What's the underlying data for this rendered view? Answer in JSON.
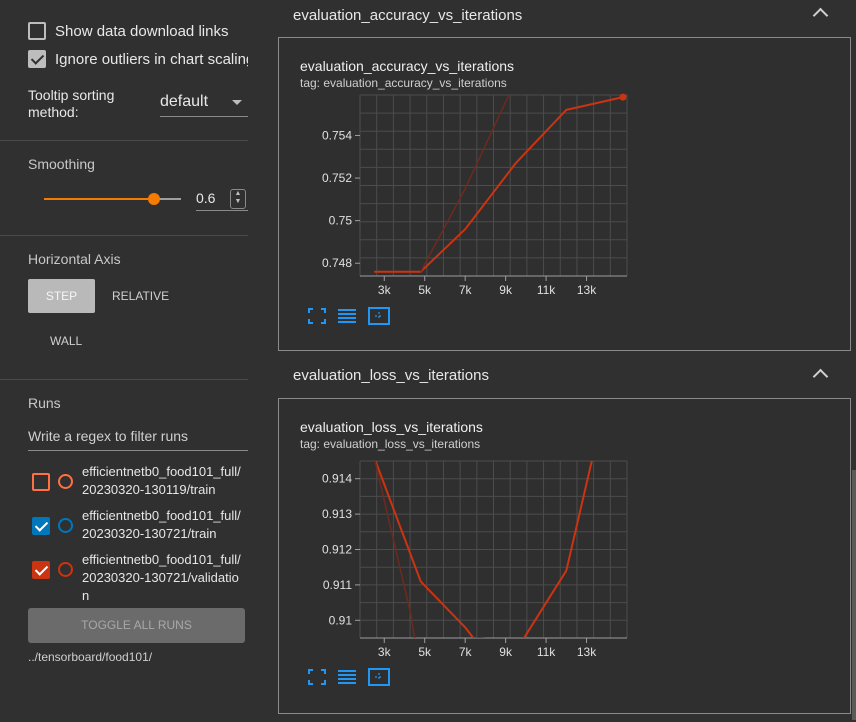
{
  "sidebar": {
    "show_download": {
      "label": "Show data download links",
      "checked": false
    },
    "ignore_outliers": {
      "label": "Ignore outliers in chart scaling",
      "checked": true
    },
    "tooltip_sorting": {
      "label_line1": "Tooltip sorting",
      "label_line2": "method:",
      "value": "default"
    },
    "smoothing": {
      "title": "Smoothing",
      "value": 0.6,
      "display": "0.6"
    },
    "horizontal_axis": {
      "title": "Horizontal Axis",
      "step": "STEP",
      "relative": "RELATIVE",
      "wall": "WALL"
    },
    "runs": {
      "title": "Runs",
      "filter_placeholder": "Write a regex to filter runs",
      "items": [
        {
          "line1": "efficientnetb0_food101_full/",
          "line2": "20230320-130119/train",
          "line3": "",
          "checked": false,
          "color": "#ff7043"
        },
        {
          "line1": "efficientnetb0_food101_full/",
          "line2": "20230320-130721/train",
          "line3": "",
          "checked": true,
          "color": "#0077bb"
        },
        {
          "line1": "efficientnetb0_food101_full/",
          "line2": "20230320-130721/validatio",
          "line3": "n",
          "checked": true,
          "color": "#cc3311"
        }
      ],
      "toggle_all": "TOGGLE ALL RUNS",
      "logdir": "../tensorboard/food101/"
    }
  },
  "groups": [
    {
      "title": "evaluation_accuracy_vs_iterations",
      "card_title": "evaluation_accuracy_vs_iterations",
      "card_tag": "tag: evaluation_accuracy_vs_iterations"
    },
    {
      "title": "evaluation_loss_vs_iterations",
      "card_title": "evaluation_loss_vs_iterations",
      "card_tag": "tag: evaluation_loss_vs_iterations"
    }
  ],
  "colors": {
    "accent": "#f57c00",
    "series": "#cc3311",
    "series_raw": "#6e2a1e"
  },
  "chart_data": [
    {
      "type": "line",
      "title": "evaluation_accuracy_vs_iterations",
      "x_ticks": [
        "3k",
        "5k",
        "7k",
        "9k",
        "11k",
        "13k"
      ],
      "y_ticks": [
        "0.748",
        "0.75",
        "0.752",
        "0.754"
      ],
      "xlim": [
        1800,
        15000
      ],
      "ylim": [
        0.7474,
        0.7559
      ],
      "grid": true,
      "series": [
        {
          "smoothed": true,
          "x": [
            2500,
            4800,
            7000,
            9500,
            12000,
            14800
          ],
          "y": [
            0.7476,
            0.7476,
            0.7496,
            0.7527,
            0.7552,
            0.7558
          ]
        },
        {
          "smoothed": false,
          "x": [
            4800,
            7000,
            9500
          ],
          "y": [
            0.7476,
            0.7515,
            0.7566
          ]
        }
      ]
    },
    {
      "type": "line",
      "title": "evaluation_loss_vs_iterations",
      "x_ticks": [
        "3k",
        "5k",
        "7k",
        "9k",
        "11k",
        "13k"
      ],
      "y_ticks": [
        "0.91",
        "0.911",
        "0.912",
        "0.913",
        "0.914"
      ],
      "xlim": [
        1800,
        15000
      ],
      "ylim": [
        0.9095,
        0.9145
      ],
      "grid": true,
      "series": [
        {
          "smoothed": true,
          "x": [
            2500,
            4800,
            7000,
            7400,
            9800,
            12000,
            13300
          ],
          "y": [
            0.9146,
            0.9111,
            0.9098,
            0.9095,
            0.9094,
            0.9114,
            0.9146
          ]
        },
        {
          "smoothed": false,
          "x": [
            2500,
            4300,
            4500
          ],
          "y": [
            0.9146,
            0.9102,
            0.9095
          ]
        }
      ]
    }
  ]
}
